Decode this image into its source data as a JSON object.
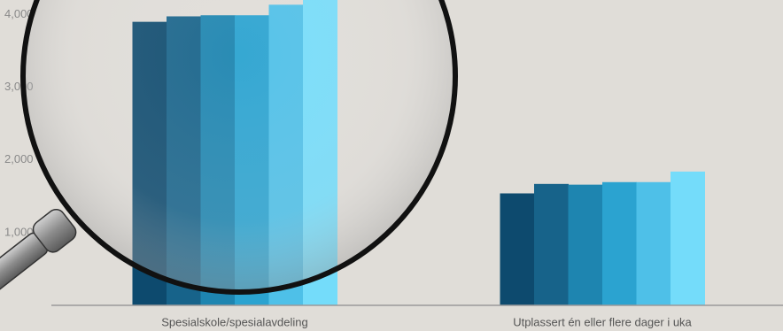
{
  "chart_data": {
    "type": "bar",
    "categories": [
      "Spesialskole/spesialavdeling",
      "Utplassert én eller flere dager i uka"
    ],
    "series": [
      {
        "color": "#0d4a6e",
        "values": [
          3900,
          1540
        ]
      },
      {
        "color": "#17638a",
        "values": [
          3975,
          1670
        ]
      },
      {
        "color": "#1e85b0",
        "values": [
          3990,
          1660
        ]
      },
      {
        "color": "#2ba3d0",
        "values": [
          3990,
          1695
        ]
      },
      {
        "color": "#4ec0e8",
        "values": [
          4135,
          1695
        ]
      },
      {
        "color": "#74dcfa",
        "values": [
          4200,
          1840
        ]
      }
    ],
    "ylim": [
      0,
      4200
    ],
    "yticks": [
      {
        "value": 1000,
        "label": "1,000"
      },
      {
        "value": 2000,
        "label": "2,000"
      },
      {
        "value": 3000,
        "label": "3,000"
      },
      {
        "value": 4000,
        "label": "4,000"
      }
    ]
  }
}
